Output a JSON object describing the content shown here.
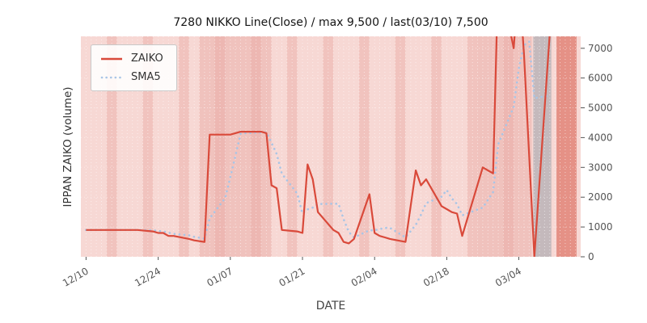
{
  "chart_data": {
    "type": "line",
    "title": "7280 NIKKO Line(Close) / max 9,500 / last(03/10) 7,500",
    "xlabel": "DATE",
    "ylabel": "IPPAN ZAIKO (volume)",
    "max_value": 9500,
    "last_point": {
      "date": "03/10",
      "value": 7500
    },
    "plot_bg": "#f7d8d4",
    "legend": {
      "position": "upper-left",
      "items": [
        {
          "label": "ZAIKO",
          "color": "#d9493a",
          "style": "solid"
        },
        {
          "label": "SMA5",
          "color": "#a9c5e6",
          "style": "dotted"
        }
      ]
    },
    "x_axis": {
      "tick_labels": [
        "12/10",
        "12/24",
        "01/07",
        "01/21",
        "02/04",
        "02/18",
        "03/04"
      ],
      "tick_days": [
        0,
        14,
        28,
        42,
        56,
        70,
        84
      ],
      "lim": [
        -1,
        96
      ],
      "grid": true
    },
    "y_axis": {
      "ticks": [
        0,
        1000,
        2000,
        3000,
        4000,
        5000,
        6000,
        7000
      ],
      "lim": [
        0,
        7400
      ],
      "side": "right",
      "grid": true
    },
    "series": [
      {
        "name": "ZAIKO",
        "color": "#d9493a",
        "width": 2.2,
        "style": "solid",
        "points": [
          [
            "12/10",
            0,
            900
          ],
          [
            "12/11",
            1,
            900
          ],
          [
            "12/12",
            2,
            900
          ],
          [
            "12/13",
            3,
            900
          ],
          [
            "12/16",
            6,
            900
          ],
          [
            "12/17",
            7,
            900
          ],
          [
            "12/18",
            8,
            900
          ],
          [
            "12/19",
            9,
            900
          ],
          [
            "12/20",
            10,
            900
          ],
          [
            "12/23",
            13,
            850
          ],
          [
            "12/24",
            14,
            800
          ],
          [
            "12/25",
            15,
            800
          ],
          [
            "12/26",
            16,
            700
          ],
          [
            "12/27",
            17,
            700
          ],
          [
            "12/30",
            20,
            600
          ],
          [
            "12/31",
            21,
            550
          ],
          [
            "01/02",
            23,
            500
          ],
          [
            "01/03",
            24,
            4100
          ],
          [
            "01/06",
            27,
            4100
          ],
          [
            "01/07",
            28,
            4100
          ],
          [
            "01/08",
            29,
            4150
          ],
          [
            "01/09",
            30,
            4200
          ],
          [
            "01/10",
            31,
            4200
          ],
          [
            "01/13",
            34,
            4200
          ],
          [
            "01/14",
            35,
            4150
          ],
          [
            "01/15",
            36,
            2400
          ],
          [
            "01/16",
            37,
            2300
          ],
          [
            "01/17",
            38,
            900
          ],
          [
            "01/20",
            41,
            850
          ],
          [
            "01/21",
            42,
            800
          ],
          [
            "01/22",
            43,
            3100
          ],
          [
            "01/23",
            44,
            2600
          ],
          [
            "01/24",
            45,
            1500
          ],
          [
            "01/27",
            48,
            900
          ],
          [
            "01/28",
            49,
            800
          ],
          [
            "01/29",
            50,
            500
          ],
          [
            "01/30",
            51,
            450
          ],
          [
            "01/31",
            52,
            600
          ],
          [
            "02/03",
            55,
            2100
          ],
          [
            "02/04",
            56,
            800
          ],
          [
            "02/05",
            57,
            700
          ],
          [
            "02/06",
            58,
            650
          ],
          [
            "02/07",
            59,
            600
          ],
          [
            "02/10",
            62,
            500
          ],
          [
            "02/12",
            64,
            2900
          ],
          [
            "02/13",
            65,
            2400
          ],
          [
            "02/14",
            66,
            2600
          ],
          [
            "02/17",
            69,
            1700
          ],
          [
            "02/18",
            70,
            1600
          ],
          [
            "02/19",
            71,
            1500
          ],
          [
            "02/20",
            72,
            1450
          ],
          [
            "02/21",
            73,
            700
          ],
          [
            "02/25",
            77,
            3000
          ],
          [
            "02/26",
            78,
            2900
          ],
          [
            "02/27",
            79,
            2800
          ],
          [
            "02/28",
            80,
            9500
          ],
          [
            "03/03",
            83,
            7000
          ],
          [
            "03/04",
            84,
            9400
          ],
          [
            "03/05",
            85,
            6800
          ],
          [
            "03/06",
            86,
            3400
          ],
          [
            "03/07",
            87,
            0
          ],
          [
            "03/10",
            90,
            7500
          ]
        ]
      },
      {
        "name": "SMA5",
        "color": "#a9c5e6",
        "width": 2.6,
        "style": "dotted",
        "derived_from": "ZAIKO",
        "window": 5
      }
    ],
    "bands": [
      {
        "from": 4,
        "to": 6,
        "color": "#f0c1bb",
        "opacity": 0.9
      },
      {
        "from": 11,
        "to": 13,
        "color": "#f0c1bb",
        "opacity": 0.9
      },
      {
        "from": 18,
        "to": 20,
        "color": "#f0c1bb",
        "opacity": 0.9
      },
      {
        "from": 25,
        "to": 27,
        "color": "#f0c1bb",
        "opacity": 0.9
      },
      {
        "from": 32,
        "to": 34,
        "color": "#f0c1bb",
        "opacity": 0.9
      },
      {
        "from": 39,
        "to": 41,
        "color": "#f0c1bb",
        "opacity": 0.9
      },
      {
        "from": 46,
        "to": 48,
        "color": "#f0c1bb",
        "opacity": 0.9
      },
      {
        "from": 53,
        "to": 55,
        "color": "#f0c1bb",
        "opacity": 0.9
      },
      {
        "from": 60,
        "to": 62,
        "color": "#f0c1bb",
        "opacity": 0.9
      },
      {
        "from": 67,
        "to": 69,
        "color": "#f0c1bb",
        "opacity": 0.9
      },
      {
        "from": 74,
        "to": 76,
        "color": "#f0c1bb",
        "opacity": 0.9
      },
      {
        "from": 81,
        "to": 83,
        "color": "#f0c1bb",
        "opacity": 0.9
      },
      {
        "from": 22,
        "to": 36,
        "color": "#e9aca5",
        "opacity": 0.5
      },
      {
        "from": 76,
        "to": 86.5,
        "color": "#e9aca5",
        "opacity": 0.5
      },
      {
        "from": 86.8,
        "to": 90.3,
        "color": "#9aa0a8",
        "opacity": 0.55
      },
      {
        "from": 91.3,
        "to": 95.2,
        "color": "#d96252",
        "opacity": 0.6
      }
    ]
  }
}
